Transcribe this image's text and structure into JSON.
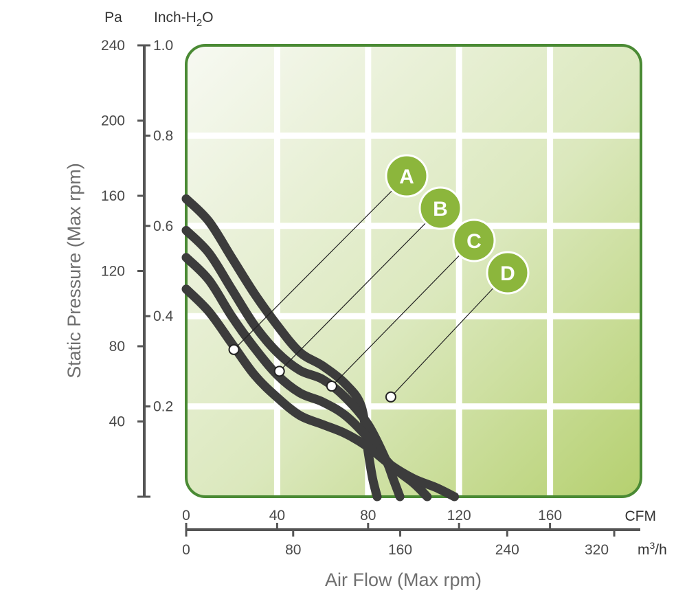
{
  "chart_data": {
    "type": "line",
    "ylabel": "Static Pressure (Max rpm)",
    "xlabel": "Air Flow (Max rpm)",
    "y_axes": {
      "pa": {
        "unit": "Pa",
        "ticks": [
          "40",
          "80",
          "120",
          "160",
          "200",
          "240"
        ],
        "range": [
          0,
          240
        ]
      },
      "inch_h2o": {
        "unit_prefix": "Inch-H",
        "unit_sub": "2",
        "unit_suffix": "O",
        "ticks": [
          "0.2",
          "0.4",
          "0.6",
          "0.8",
          "1.0"
        ],
        "range": [
          0,
          1.0
        ]
      }
    },
    "x_axes": {
      "cfm": {
        "unit": "CFM",
        "ticks": [
          "0",
          "40",
          "80",
          "120",
          "160"
        ],
        "range": [
          0,
          200
        ]
      },
      "m3h": {
        "unit_prefix": "m",
        "unit_sup": "3",
        "unit_suffix": "/h",
        "ticks": [
          "0",
          "80",
          "160",
          "240",
          "320"
        ],
        "range": [
          0,
          340
        ]
      }
    },
    "grid": true,
    "series": [
      {
        "name": "A",
        "x": [
          0,
          10,
          20,
          30,
          40,
          50,
          60,
          70,
          77,
          80,
          82,
          84
        ],
        "y": [
          0.66,
          0.61,
          0.53,
          0.45,
          0.38,
          0.32,
          0.29,
          0.25,
          0.2,
          0.1,
          0.04,
          0.0
        ],
        "callout_point": [
          21,
          0.326
        ]
      },
      {
        "name": "B",
        "x": [
          0,
          10,
          20,
          30,
          40,
          50,
          60,
          70,
          80,
          88,
          91,
          94
        ],
        "y": [
          0.59,
          0.54,
          0.46,
          0.38,
          0.32,
          0.28,
          0.26,
          0.22,
          0.16,
          0.08,
          0.04,
          0.0
        ],
        "callout_point": [
          41,
          0.278
        ]
      },
      {
        "name": "C",
        "x": [
          0,
          10,
          20,
          30,
          40,
          50,
          60,
          70,
          80,
          90,
          100,
          106
        ],
        "y": [
          0.53,
          0.48,
          0.4,
          0.33,
          0.27,
          0.23,
          0.21,
          0.18,
          0.13,
          0.07,
          0.03,
          0.0
        ],
        "callout_point": [
          64,
          0.245
        ]
      },
      {
        "name": "D",
        "x": [
          0,
          10,
          20,
          30,
          40,
          50,
          60,
          70,
          80,
          90,
          100,
          110,
          118
        ],
        "y": [
          0.46,
          0.41,
          0.34,
          0.27,
          0.22,
          0.18,
          0.16,
          0.14,
          0.11,
          0.07,
          0.04,
          0.02,
          0.0
        ],
        "callout_point": [
          90,
          0.221
        ]
      }
    ],
    "colors": {
      "curve": "#3c3c3c",
      "frame": "#4a8a34",
      "callout": "#8cb63c",
      "axis": "#555555",
      "plot_bg_light": "#f4f7ee",
      "plot_bg_dark": "#b9d37a",
      "grid": "#ffffff"
    }
  }
}
